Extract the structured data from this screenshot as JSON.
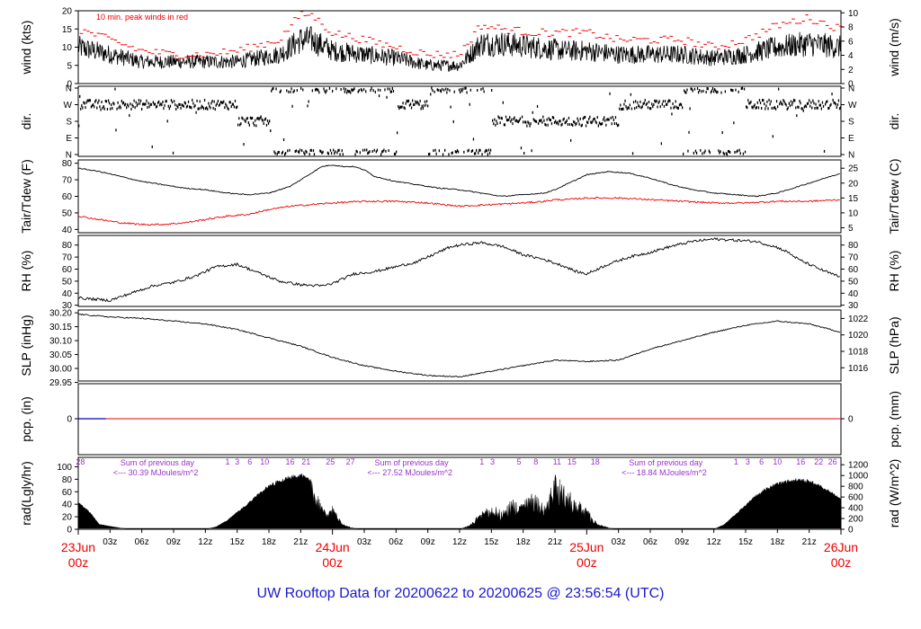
{
  "title": "UW Rooftop Data for 20200622  to  20200625 @ 23:56:54  (UTC)",
  "colors": {
    "line": "#000000",
    "dewpoint": "#ee0000",
    "peak": "#ee0000",
    "precip": "#ee0000",
    "precip_low": "#0000cc",
    "annotation": "#9933cc",
    "date": "#ee0000",
    "title": "#1a1acc"
  },
  "x_axis": {
    "range_hours": [
      0,
      72
    ],
    "hour_ticks": [
      {
        "h": 3,
        "label": "03z"
      },
      {
        "h": 6,
        "label": "06z"
      },
      {
        "h": 9,
        "label": "09z"
      },
      {
        "h": 12,
        "label": "12z"
      },
      {
        "h": 15,
        "label": "15z"
      },
      {
        "h": 18,
        "label": "18z"
      },
      {
        "h": 21,
        "label": "21z"
      },
      {
        "h": 27,
        "label": "03z"
      },
      {
        "h": 30,
        "label": "06z"
      },
      {
        "h": 33,
        "label": "09z"
      },
      {
        "h": 36,
        "label": "12z"
      },
      {
        "h": 39,
        "label": "15z"
      },
      {
        "h": 42,
        "label": "18z"
      },
      {
        "h": 45,
        "label": "21z"
      },
      {
        "h": 51,
        "label": "03z"
      },
      {
        "h": 54,
        "label": "06z"
      },
      {
        "h": 57,
        "label": "09z"
      },
      {
        "h": 60,
        "label": "12z"
      },
      {
        "h": 63,
        "label": "15z"
      },
      {
        "h": 66,
        "label": "18z"
      },
      {
        "h": 69,
        "label": "21z"
      }
    ],
    "day_ticks": [
      {
        "h": 0,
        "date": "23Jun",
        "hour": "00z"
      },
      {
        "h": 24,
        "date": "24Jun",
        "hour": "00z"
      },
      {
        "h": 48,
        "date": "25Jun",
        "hour": "00z"
      },
      {
        "h": 72,
        "date": "26Jun",
        "hour": "00z"
      }
    ]
  },
  "panels": {
    "wind": {
      "ylabel_left": "wind (kts)",
      "ylabel_right": "wind (m/s)",
      "ylim": [
        0,
        20
      ],
      "left_ticks": [
        0,
        5,
        10,
        15,
        20
      ],
      "right_ylim_ms": [
        0,
        10.29
      ],
      "right_ticks": [
        0,
        2,
        4,
        6,
        8,
        10
      ],
      "note": "10 min. peak winds in red"
    },
    "dir": {
      "ylabel_left": "dir.",
      "ylabel_right": "dir.",
      "ticks": [
        "N",
        "E",
        "S",
        "W",
        "N"
      ]
    },
    "temp": {
      "ylabel_left": "Tair/Tdew (F)",
      "ylabel_right": "Tair/Tdew (C)",
      "ylim": [
        38,
        82
      ],
      "left_ticks": [
        40,
        50,
        60,
        70,
        80
      ],
      "right_ticks": [
        5,
        10,
        15,
        20,
        25
      ]
    },
    "rh": {
      "ylabel_left": "RH (%)",
      "ylabel_right": "RH (%)",
      "ylim": [
        29,
        88
      ],
      "ticks": [
        30,
        40,
        50,
        60,
        70,
        80
      ]
    },
    "slp": {
      "ylabel_left": "SLP (inHg)",
      "ylabel_right": "SLP (hPa)",
      "ylim": [
        29.955,
        30.21
      ],
      "left_ticks": [
        29.95,
        30.0,
        30.05,
        30.1,
        30.15,
        30.2
      ],
      "right_ticks": [
        1016,
        1018,
        1020,
        1022
      ]
    },
    "pcp": {
      "ylabel_left": "pcp. (in)",
      "ylabel_right": "pcp. (mm)",
      "left_ticks": [
        0
      ],
      "right_ticks": [
        0
      ]
    },
    "rad": {
      "ylabel_left": "rad(Lgly/hr)",
      "ylabel_right": "rad (W/m^2)",
      "ylim": [
        0,
        115
      ],
      "left_ticks": [
        0,
        20,
        40,
        60,
        80,
        100
      ],
      "right_ticks": [
        0,
        200,
        400,
        600,
        800,
        1000,
        1200
      ],
      "sums": [
        {
          "h": 3.3,
          "label": "Sum of previous day",
          "value": "<--- 30.39 MJoules/m^2"
        },
        {
          "h": 27.3,
          "label": "Sum of previous day",
          "value": "<--- 27.52 MJoules/m^2"
        },
        {
          "h": 51.3,
          "label": "Sum of previous day",
          "value": "<--- 18.84 MJoules/m^2"
        }
      ],
      "day_numbers": [
        {
          "h": 0.2,
          "label": "28"
        },
        {
          "h": 14.1,
          "label": "1"
        },
        {
          "h": 15.0,
          "label": "3"
        },
        {
          "h": 16.2,
          "label": "6"
        },
        {
          "h": 17.6,
          "label": "10"
        },
        {
          "h": 20.0,
          "label": "16"
        },
        {
          "h": 21.5,
          "label": "21"
        },
        {
          "h": 23.8,
          "label": "25"
        },
        {
          "h": 25.7,
          "label": "27"
        },
        {
          "h": 38.1,
          "label": "1"
        },
        {
          "h": 39.1,
          "label": "3"
        },
        {
          "h": 41.6,
          "label": "5"
        },
        {
          "h": 43.2,
          "label": "8"
        },
        {
          "h": 45.2,
          "label": "11"
        },
        {
          "h": 46.6,
          "label": "15"
        },
        {
          "h": 48.8,
          "label": "18"
        },
        {
          "h": 62.1,
          "label": "1"
        },
        {
          "h": 63.2,
          "label": "3"
        },
        {
          "h": 64.5,
          "label": "6"
        },
        {
          "h": 66.0,
          "label": "10"
        },
        {
          "h": 68.2,
          "label": "16"
        },
        {
          "h": 69.9,
          "label": "22"
        },
        {
          "h": 71.2,
          "label": "26"
        }
      ]
    }
  },
  "chart_data": {
    "type": "line",
    "title": "UW Rooftop Data for 20200622  to  20200625 @ 23:56:54  (UTC)",
    "x_units": "hours since 23Jun 00z",
    "series": [
      {
        "name": "wind (kts)",
        "panel": "wind",
        "x": [
          0,
          3,
          6,
          9,
          12,
          15,
          19,
          21,
          22,
          24,
          27,
          30,
          33,
          36,
          38,
          40,
          43,
          46,
          48,
          51,
          54,
          57,
          60,
          63,
          66,
          69,
          72
        ],
        "y": [
          10,
          8,
          6,
          6,
          6,
          6,
          8,
          12,
          12,
          9,
          8,
          7,
          5,
          5,
          11,
          11,
          10,
          9,
          9,
          8,
          8,
          8,
          7,
          8,
          10,
          11,
          10
        ]
      },
      {
        "name": "peak wind (kts)",
        "panel": "wind",
        "x": [
          0,
          3,
          6,
          9,
          12,
          15,
          19,
          21,
          22,
          24,
          27,
          30,
          33,
          36,
          38,
          40,
          43,
          46,
          48,
          51,
          54,
          57,
          60,
          63,
          66,
          69,
          72
        ],
        "y": [
          15,
          12,
          9,
          8,
          8,
          9,
          12,
          19,
          19,
          14,
          12,
          10,
          8,
          8,
          16,
          15,
          14,
          14,
          14,
          12,
          12,
          12,
          10,
          12,
          16,
          18,
          15
        ]
      },
      {
        "name": "direction",
        "panel": "dir",
        "x": [
          0,
          4,
          8,
          12,
          15,
          18,
          20,
          22,
          24,
          27,
          30,
          33,
          36,
          39,
          42,
          45,
          48,
          51,
          54,
          57,
          60,
          63,
          66,
          69,
          72
        ],
        "y": [
          "W",
          "W",
          "W",
          "W",
          "S",
          "N",
          "N",
          "N",
          "N",
          "N",
          "W",
          "N",
          "N",
          "S",
          "S",
          "S",
          "S",
          "W",
          "W",
          "N",
          "N",
          "W",
          "W",
          "W",
          "W"
        ]
      },
      {
        "name": "Tair (F)",
        "panel": "temp",
        "x": [
          0,
          2,
          4,
          6,
          8,
          10,
          12,
          14,
          16,
          18,
          20,
          21,
          22,
          23,
          24,
          25,
          26,
          27,
          28,
          30,
          32,
          34,
          36,
          38,
          40,
          42,
          44,
          45,
          46,
          47,
          48,
          50,
          52,
          54,
          56,
          58,
          60,
          62,
          64,
          66,
          68,
          70,
          72
        ],
        "y": [
          77,
          75,
          72,
          69,
          67,
          65,
          64,
          62,
          61,
          62,
          66,
          70,
          74,
          78,
          79,
          78,
          78,
          76,
          72,
          69,
          67,
          65,
          64,
          62,
          60,
          61,
          62,
          64,
          67,
          70,
          73,
          75,
          74,
          71,
          67,
          64,
          62,
          61,
          60,
          62,
          66,
          70,
          74
        ]
      },
      {
        "name": "Tdew (F)",
        "panel": "temp",
        "x": [
          0,
          2,
          4,
          6,
          8,
          10,
          12,
          14,
          16,
          18,
          20,
          22,
          24,
          27,
          30,
          33,
          36,
          39,
          42,
          44,
          45,
          46,
          48,
          51,
          54,
          57,
          60,
          63,
          66,
          69,
          72
        ],
        "y": [
          48,
          46,
          44,
          43,
          43,
          44,
          46,
          48,
          49,
          52,
          54,
          55,
          56,
          57,
          57,
          56,
          54,
          55,
          56,
          57,
          58,
          58,
          59,
          59,
          58,
          57,
          56,
          56,
          57,
          57,
          58
        ]
      },
      {
        "name": "RH (%)",
        "panel": "rh",
        "x": [
          0,
          3,
          5,
          7,
          9,
          11,
          13,
          15,
          17,
          19,
          21,
          23,
          24,
          26,
          28,
          30,
          32,
          33,
          34,
          35,
          36,
          38,
          40,
          42,
          44,
          46,
          47,
          48,
          50,
          52,
          54,
          56,
          58,
          60,
          62,
          64,
          66,
          67,
          68,
          70,
          72
        ],
        "y": [
          36,
          34,
          40,
          46,
          49,
          54,
          62,
          64,
          57,
          50,
          47,
          46,
          48,
          56,
          58,
          62,
          66,
          70,
          74,
          78,
          80,
          82,
          79,
          72,
          68,
          62,
          58,
          56,
          64,
          70,
          74,
          79,
          83,
          85,
          84,
          83,
          78,
          74,
          68,
          60,
          53
        ]
      },
      {
        "name": "SLP (inHg)",
        "panel": "slp",
        "x": [
          0,
          3,
          6,
          9,
          12,
          15,
          18,
          21,
          24,
          27,
          30,
          33,
          36,
          39,
          42,
          45,
          48,
          51,
          54,
          57,
          60,
          63,
          66,
          69,
          72
        ],
        "y": [
          30.195,
          30.185,
          30.18,
          30.17,
          30.16,
          30.14,
          30.11,
          30.08,
          30.04,
          30.01,
          29.99,
          29.975,
          29.97,
          29.99,
          30.01,
          30.03,
          30.025,
          30.03,
          30.07,
          30.1,
          30.13,
          30.155,
          30.17,
          30.16,
          30.13
        ]
      },
      {
        "name": "pcp. (in)",
        "panel": "pcp",
        "x": [
          0,
          72
        ],
        "y": [
          0,
          0
        ]
      },
      {
        "name": "rad (Lgly/hr)",
        "panel": "rad",
        "x": [
          0,
          1,
          2,
          3,
          4,
          5,
          12,
          13,
          14,
          15,
          16,
          17,
          18,
          19,
          20,
          21,
          22,
          23,
          23.5,
          24,
          25,
          26,
          27,
          36,
          37,
          38,
          39,
          40,
          41,
          42,
          43,
          44,
          45,
          46,
          47,
          48,
          49,
          50,
          51,
          60,
          61,
          62,
          63,
          64,
          65,
          66,
          67,
          68,
          69,
          70,
          71,
          72
        ],
        "y": [
          45,
          30,
          8,
          5,
          2,
          0,
          0,
          4,
          14,
          28,
          42,
          58,
          72,
          80,
          86,
          90,
          80,
          40,
          25,
          38,
          8,
          2,
          0,
          0,
          8,
          28,
          42,
          30,
          50,
          46,
          60,
          38,
          90,
          70,
          50,
          35,
          10,
          3,
          0,
          0,
          8,
          24,
          40,
          56,
          68,
          76,
          80,
          82,
          80,
          72,
          62,
          50
        ]
      }
    ]
  }
}
